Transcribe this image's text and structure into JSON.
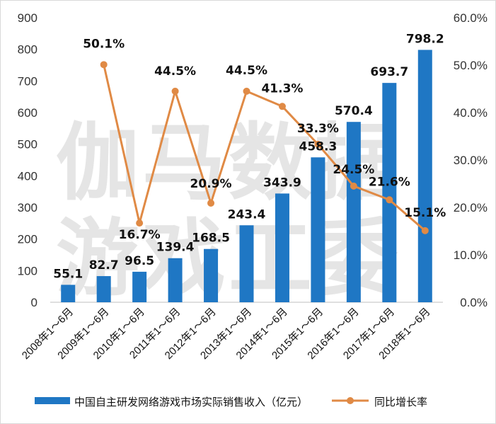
{
  "watermark": {
    "line1": "伽马数据",
    "line2": "游戏工委"
  },
  "chart_data": {
    "type": "bar",
    "categories": [
      "2008年1～6月",
      "2009年1～6月",
      "2010年1～6月",
      "2011年1～6月",
      "2012年1～6月",
      "2013年1～6月",
      "2014年1～6月",
      "2015年1～6月",
      "2016年1～6月",
      "2017年1～6月",
      "2018年1～6月"
    ],
    "series": [
      {
        "name": "中国自主研发网络游戏市场实际销售收入（亿元）",
        "type": "bar",
        "axis": "left",
        "color": "#1f77c4",
        "values": [
          55.1,
          82.7,
          96.5,
          139.4,
          168.5,
          243.4,
          343.9,
          458.3,
          570.4,
          693.7,
          798.2
        ],
        "labels": [
          "55.1",
          "82.7",
          "96.5",
          "139.4",
          "168.5",
          "243.4",
          "343.9",
          "458.3",
          "570.4",
          "693.7",
          "798.2"
        ]
      },
      {
        "name": "同比增长率",
        "type": "line",
        "axis": "right",
        "color": "#e08a45",
        "values": [
          null,
          50.1,
          16.7,
          44.5,
          20.9,
          44.5,
          41.3,
          33.3,
          24.5,
          21.6,
          15.1
        ],
        "labels": [
          "",
          "50.1%",
          "16.7%",
          "44.5%",
          "20.9%",
          "44.5%",
          "41.3%",
          "33.3%",
          "24.5%",
          "21.6%",
          "15.1%"
        ]
      }
    ],
    "y_left": {
      "min": 0,
      "max": 900,
      "ticks": [
        "0",
        "100",
        "200",
        "300",
        "400",
        "500",
        "600",
        "700",
        "800",
        "900"
      ]
    },
    "y_right": {
      "min": 0,
      "max": 60,
      "ticks": [
        "0.0%",
        "10.0%",
        "20.0%",
        "30.0%",
        "40.0%",
        "50.0%",
        "60.0%"
      ]
    },
    "grid": false,
    "legend": "bottom"
  }
}
